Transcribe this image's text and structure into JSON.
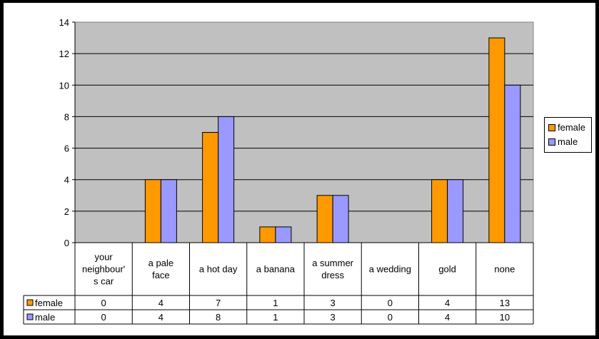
{
  "chart_data": {
    "type": "bar",
    "categories": [
      [
        "your",
        "neighbour'",
        "s car"
      ],
      [
        "a pale",
        "face"
      ],
      [
        "a hot day"
      ],
      [
        "a banana"
      ],
      [
        "a summer",
        "dress"
      ],
      [
        "a wedding"
      ],
      [
        "gold"
      ],
      [
        "none"
      ]
    ],
    "series": [
      {
        "name": "female",
        "values": [
          0,
          4,
          7,
          1,
          3,
          0,
          4,
          13
        ],
        "color": "#ff9900"
      },
      {
        "name": "male",
        "values": [
          0,
          4,
          8,
          1,
          3,
          0,
          4,
          10
        ],
        "color": "#9999ff"
      }
    ],
    "ylim": [
      0,
      14
    ],
    "yticks": [
      0,
      2,
      4,
      6,
      8,
      10,
      12,
      14
    ],
    "grid": true,
    "plot_background": "#c0c0c0",
    "legend_position": "right",
    "data_table": true
  }
}
